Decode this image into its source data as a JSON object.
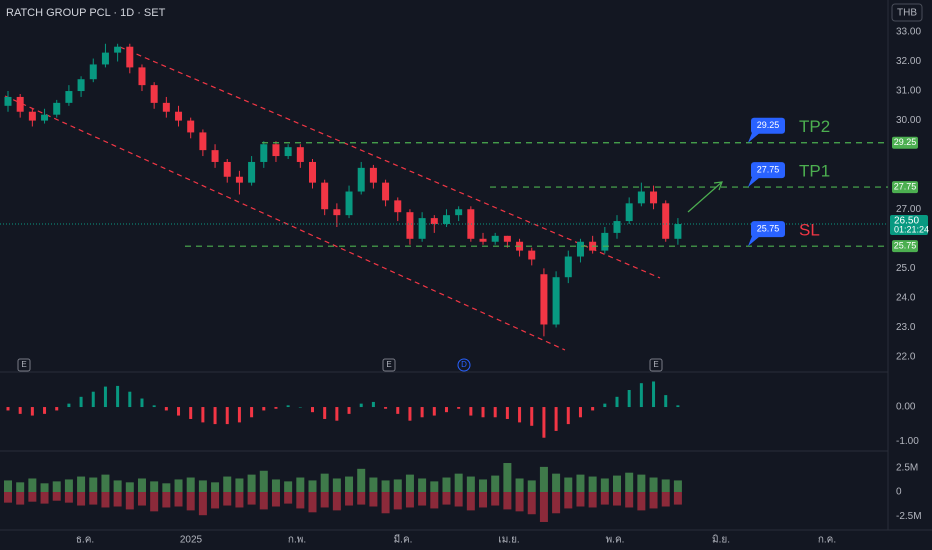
{
  "chart_data": {
    "type": "candlestick",
    "title": "RATCH GROUP PCL · 1D · SET",
    "currency": "THB",
    "up_color": "#089981",
    "down_color": "#f23645",
    "open": [
      30.5,
      30.8,
      30.3,
      30.0,
      30.2,
      30.6,
      31.0,
      31.4,
      31.9,
      32.3,
      32.5,
      31.8,
      31.2,
      30.6,
      30.3,
      30.0,
      29.6,
      29.0,
      28.6,
      28.1,
      27.9,
      28.6,
      29.2,
      28.8,
      29.1,
      28.6,
      27.9,
      27.0,
      26.8,
      27.6,
      28.4,
      27.9,
      27.3,
      26.9,
      26.0,
      26.7,
      26.5,
      26.8,
      27.0,
      26.0,
      25.9,
      26.1,
      25.9,
      25.6,
      24.8,
      23.1,
      24.7,
      25.4,
      25.9,
      25.6,
      26.2,
      26.6,
      27.2,
      27.6,
      27.2,
      26.0
    ],
    "high": [
      31.0,
      30.9,
      30.4,
      30.4,
      30.7,
      31.2,
      31.5,
      32.1,
      32.6,
      32.6,
      32.6,
      31.9,
      31.3,
      30.8,
      30.5,
      30.1,
      29.7,
      29.2,
      28.7,
      28.3,
      28.8,
      29.3,
      29.3,
      29.2,
      29.2,
      28.7,
      28.0,
      27.2,
      27.8,
      28.6,
      28.5,
      28.0,
      27.4,
      27.0,
      26.9,
      26.8,
      27.0,
      27.1,
      27.1,
      26.2,
      26.2,
      26.1,
      26.0,
      25.7,
      25.0,
      24.9,
      25.6,
      26.0,
      26.1,
      26.4,
      26.8,
      27.4,
      27.9,
      27.8,
      27.3,
      26.7
    ],
    "low": [
      30.3,
      30.1,
      29.8,
      29.9,
      30.1,
      30.5,
      30.8,
      31.3,
      31.8,
      32.0,
      31.6,
      31.0,
      30.4,
      30.1,
      29.8,
      29.4,
      28.8,
      28.4,
      27.9,
      27.5,
      27.8,
      28.4,
      28.6,
      28.7,
      28.4,
      27.7,
      26.8,
      26.4,
      26.7,
      27.5,
      27.7,
      27.1,
      26.6,
      25.8,
      25.9,
      26.2,
      26.4,
      26.6,
      25.9,
      25.8,
      25.8,
      25.7,
      25.4,
      25.1,
      22.7,
      23.0,
      24.5,
      25.2,
      25.5,
      25.5,
      26.0,
      26.5,
      27.1,
      27.0,
      25.9,
      25.8
    ],
    "close": [
      30.8,
      30.3,
      30.0,
      30.2,
      30.6,
      31.0,
      31.4,
      31.9,
      32.3,
      32.5,
      31.8,
      31.2,
      30.6,
      30.3,
      30.0,
      29.6,
      29.0,
      28.6,
      28.1,
      27.9,
      28.6,
      29.2,
      28.8,
      29.1,
      28.6,
      27.9,
      27.0,
      26.8,
      27.6,
      28.4,
      27.9,
      27.3,
      26.9,
      26.0,
      26.7,
      26.5,
      26.8,
      27.0,
      26.0,
      25.9,
      26.1,
      25.9,
      25.6,
      25.3,
      23.1,
      24.7,
      25.4,
      25.9,
      25.6,
      26.2,
      26.6,
      27.2,
      27.6,
      27.2,
      26.0,
      26.5
    ],
    "ylim": [
      21.56,
      33.81
    ],
    "yticks": [
      {
        "value": 33,
        "label": "33.00"
      },
      {
        "value": 32,
        "label": "32.00"
      },
      {
        "value": 31,
        "label": "31.00"
      },
      {
        "value": 30,
        "label": "30.00"
      },
      {
        "value": 27,
        "label": "27.00"
      },
      {
        "value": 25,
        "label": "25.0"
      },
      {
        "value": 24,
        "label": "24.0"
      },
      {
        "value": 23,
        "label": "23.0"
      },
      {
        "value": 22,
        "label": "22.0"
      }
    ],
    "last_price": 26.5,
    "last_price_label": "26.50",
    "countdown": "01:21:24",
    "levels": [
      {
        "name": "TP2",
        "value": 29.25,
        "color": "#4caf50"
      },
      {
        "name": "TP1",
        "value": 27.75,
        "color": "#4caf50"
      },
      {
        "name": "SL",
        "value": 25.75,
        "color": "#f23645"
      }
    ],
    "x_labels": [
      "ธ.ค.",
      "2025",
      "ก.พ.",
      "มี.ค.",
      "เม.ย.",
      "พ.ค.",
      "มิ.ย.",
      "ก.ค."
    ],
    "event_markers": [
      "E",
      "E",
      "D",
      "E"
    ],
    "macd": {
      "values": [
        -0.1,
        -0.2,
        -0.25,
        -0.2,
        -0.1,
        0.1,
        0.3,
        0.45,
        0.6,
        0.62,
        0.45,
        0.25,
        0.05,
        -0.1,
        -0.25,
        -0.35,
        -0.45,
        -0.5,
        -0.5,
        -0.45,
        -0.3,
        -0.1,
        -0.05,
        0.05,
        0.0,
        -0.15,
        -0.35,
        -0.4,
        -0.2,
        0.1,
        0.15,
        -0.05,
        -0.2,
        -0.4,
        -0.3,
        -0.25,
        -0.15,
        -0.05,
        -0.25,
        -0.3,
        -0.3,
        -0.35,
        -0.45,
        -0.55,
        -0.9,
        -0.7,
        -0.5,
        -0.3,
        -0.1,
        0.1,
        0.3,
        0.5,
        0.7,
        0.75,
        0.35,
        0.05
      ],
      "ylim": [
        -1.26,
        0.94
      ],
      "yticks": [
        {
          "value": 0,
          "label": "0.00"
        },
        {
          "value": -1,
          "label": "-1.00"
        }
      ]
    },
    "volume": {
      "buy": [
        1.2,
        1.0,
        1.4,
        0.9,
        1.1,
        1.3,
        1.6,
        1.5,
        1.8,
        1.2,
        1.0,
        1.4,
        1.1,
        0.9,
        1.3,
        1.5,
        1.2,
        1.0,
        1.6,
        1.4,
        1.8,
        2.2,
        1.3,
        1.1,
        1.5,
        1.2,
        1.9,
        1.4,
        1.6,
        2.4,
        1.5,
        1.2,
        1.3,
        1.8,
        1.4,
        1.1,
        1.5,
        1.9,
        1.6,
        1.3,
        1.7,
        3.0,
        1.4,
        1.2,
        2.6,
        1.9,
        1.5,
        1.8,
        1.6,
        1.4,
        1.7,
        2.0,
        1.8,
        1.5,
        1.3,
        1.2
      ],
      "sell": [
        -1.1,
        -1.3,
        -1.0,
        -1.2,
        -0.9,
        -1.1,
        -1.4,
        -1.3,
        -1.6,
        -1.5,
        -1.8,
        -1.4,
        -2.0,
        -1.6,
        -1.5,
        -1.9,
        -2.4,
        -1.7,
        -1.4,
        -1.6,
        -1.3,
        -1.8,
        -1.5,
        -1.2,
        -1.7,
        -2.1,
        -1.6,
        -1.9,
        -1.4,
        -1.3,
        -1.5,
        -2.2,
        -1.8,
        -1.6,
        -1.4,
        -1.7,
        -1.3,
        -1.5,
        -1.9,
        -1.6,
        -1.4,
        -1.8,
        -2.0,
        -2.3,
        -3.1,
        -2.2,
        -1.7,
        -1.5,
        -1.6,
        -1.3,
        -1.4,
        -1.6,
        -1.9,
        -1.7,
        -1.5,
        -1.3
      ],
      "ylim": [
        -3.62,
        3.83
      ],
      "yticks": [
        {
          "value": 2.5,
          "label": "2.5M"
        },
        0,
        {
          "value": -2.5,
          "label": "-2.5M"
        }
      ]
    }
  }
}
